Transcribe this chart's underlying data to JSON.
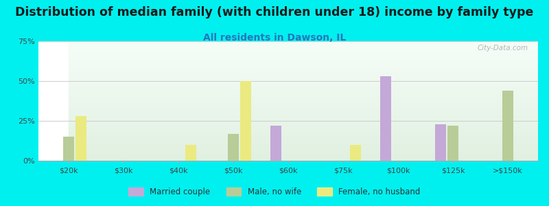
{
  "title": "Distribution of median family (with children under 18) income by family type",
  "subtitle": "All residents in Dawson, IL",
  "categories": [
    "$20k",
    "$30k",
    "$40k",
    "$50k",
    "$60k",
    "$75k",
    "$100k",
    "$125k",
    ">$150k"
  ],
  "series": {
    "Married couple": {
      "color": "#c4a8d8",
      "values": [
        0,
        0,
        0,
        0,
        22,
        0,
        53,
        23,
        0
      ]
    },
    "Male, no wife": {
      "color": "#b8cc98",
      "values": [
        15,
        0,
        0,
        17,
        0,
        0,
        0,
        22,
        44
      ]
    },
    "Female, no husband": {
      "color": "#eaea80",
      "values": [
        28,
        0,
        10,
        50,
        0,
        10,
        0,
        0,
        0
      ]
    }
  },
  "ylim": [
    0,
    75
  ],
  "yticks": [
    0,
    25,
    50,
    75
  ],
  "ytick_labels": [
    "0%",
    "25%",
    "50%",
    "75%"
  ],
  "background_color": "#00f0f0",
  "bar_width": 0.22,
  "title_fontsize": 12.5,
  "subtitle_fontsize": 10,
  "subtitle_color": "#2277bb",
  "watermark": "City-Data.com",
  "grid_color": "#cccccc"
}
